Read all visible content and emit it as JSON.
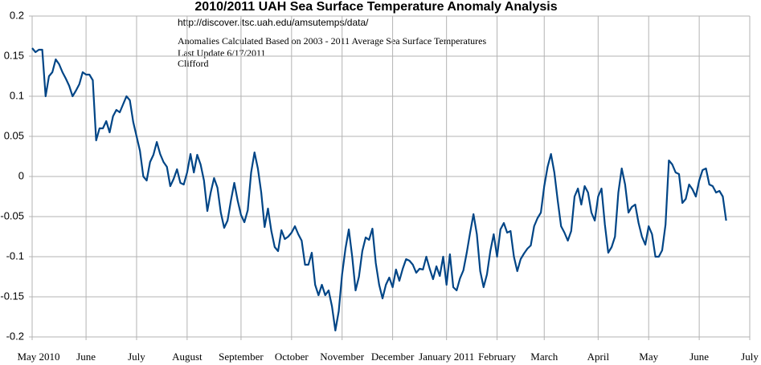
{
  "chart_data": {
    "type": "line",
    "title": "2010/2011 UAH Sea Surface Temperature Anomaly Analysis",
    "annotations": [
      "http://discover.itsc.uah.edu/amsutemps/data/",
      "Anomalies Calculated Based on 2003 - 2011 Average Sea Surface Temperatures",
      "Last Update 6/17/2011",
      "Clifford"
    ],
    "color": "#004586",
    "ylim": [
      -0.2,
      0.2
    ],
    "yticks": [
      0.2,
      0.15,
      0.1,
      0.05,
      0,
      -0.05,
      -0.1,
      -0.15,
      -0.2
    ],
    "grid": true,
    "categories": [
      "May 2010",
      null,
      null,
      null,
      null,
      null,
      null,
      null,
      null,
      null,
      null,
      null,
      null,
      null,
      null,
      null,
      "June",
      null,
      null,
      null,
      null,
      null,
      null,
      null,
      null,
      null,
      null,
      null,
      null,
      null,
      null,
      "July",
      null,
      null,
      null,
      null,
      null,
      null,
      null,
      null,
      null,
      null,
      null,
      null,
      null,
      null,
      "August",
      null,
      null,
      null,
      null,
      null,
      null,
      null,
      null,
      null,
      null,
      null,
      null,
      null,
      null,
      null,
      "September",
      null,
      null,
      null,
      null,
      null,
      null,
      null,
      null,
      null,
      null,
      null,
      null,
      null,
      null,
      "October",
      null,
      null,
      null,
      null,
      null,
      null,
      null,
      null,
      null,
      null,
      null,
      null,
      null,
      null,
      "November",
      null,
      null,
      null,
      null,
      null,
      null,
      null,
      null,
      null,
      null,
      null,
      null,
      null,
      null,
      "December",
      null,
      null,
      null,
      null,
      null,
      null,
      null,
      null,
      null,
      null,
      null,
      null,
      null,
      null,
      null,
      "January 2011",
      null,
      null,
      null,
      null,
      null,
      null,
      null,
      null,
      null,
      null,
      null,
      null,
      null,
      null,
      "February",
      null,
      null,
      null,
      null,
      null,
      null,
      null,
      null,
      null,
      null,
      null,
      null,
      null,
      "March",
      null,
      null,
      null,
      null,
      null,
      null,
      null,
      null,
      null,
      null,
      null,
      null,
      null,
      null,
      null,
      "April",
      null,
      null,
      null,
      null,
      null,
      null,
      null,
      null,
      null,
      null,
      null,
      null,
      null,
      null,
      "May",
      null,
      null,
      null,
      null,
      null,
      null,
      null,
      null,
      null,
      null,
      null,
      null,
      null,
      null,
      "June",
      null,
      null,
      null,
      null,
      null,
      null,
      null,
      null,
      null,
      null,
      null,
      null,
      null,
      null,
      "July"
    ],
    "values": [
      0.16,
      0.155,
      0.158,
      0.158,
      0.1,
      0.125,
      0.13,
      0.146,
      0.14,
      0.13,
      0.122,
      0.113,
      0.1,
      0.107,
      0.115,
      0.13,
      0.127,
      0.127,
      0.12,
      0.045,
      0.06,
      0.06,
      0.069,
      0.055,
      0.075,
      0.083,
      0.08,
      0.09,
      0.1,
      0.095,
      0.068,
      0.05,
      0.032,
      0.0,
      -0.005,
      0.018,
      0.027,
      0.043,
      0.028,
      0.018,
      0.012,
      -0.012,
      -0.003,
      0.009,
      -0.008,
      -0.01,
      0.005,
      0.028,
      0.005,
      0.027,
      0.015,
      -0.005,
      -0.043,
      -0.02,
      -0.002,
      -0.014,
      -0.045,
      -0.064,
      -0.055,
      -0.03,
      -0.008,
      -0.03,
      -0.048,
      -0.057,
      -0.042,
      0.005,
      0.03,
      0.01,
      -0.02,
      -0.063,
      -0.04,
      -0.068,
      -0.088,
      -0.093,
      -0.067,
      -0.078,
      -0.075,
      -0.07,
      -0.062,
      -0.072,
      -0.08,
      -0.11,
      -0.11,
      -0.095,
      -0.135,
      -0.148,
      -0.135,
      -0.148,
      -0.142,
      -0.162,
      -0.192,
      -0.168,
      -0.122,
      -0.09,
      -0.066,
      -0.1,
      -0.142,
      -0.125,
      -0.093,
      -0.076,
      -0.079,
      -0.065,
      -0.108,
      -0.135,
      -0.152,
      -0.135,
      -0.126,
      -0.138,
      -0.116,
      -0.13,
      -0.115,
      -0.103,
      -0.105,
      -0.11,
      -0.12,
      -0.115,
      -0.116,
      -0.1,
      -0.115,
      -0.128,
      -0.112,
      -0.124,
      -0.1,
      -0.135,
      -0.097,
      -0.138,
      -0.142,
      -0.127,
      -0.117,
      -0.095,
      -0.07,
      -0.047,
      -0.072,
      -0.118,
      -0.138,
      -0.122,
      -0.093,
      -0.072,
      -0.1,
      -0.066,
      -0.058,
      -0.07,
      -0.068,
      -0.1,
      -0.118,
      -0.103,
      -0.096,
      -0.09,
      -0.086,
      -0.062,
      -0.052,
      -0.045,
      -0.012,
      0.012,
      0.028,
      0.005,
      -0.03,
      -0.062,
      -0.07,
      -0.08,
      -0.068,
      -0.025,
      -0.015,
      -0.035,
      -0.012,
      -0.02,
      -0.045,
      -0.055,
      -0.025,
      -0.015,
      -0.06,
      -0.095,
      -0.088,
      -0.075,
      -0.02,
      0.01,
      -0.01,
      -0.045,
      -0.038,
      -0.035,
      -0.058,
      -0.075,
      -0.085,
      -0.062,
      -0.072,
      -0.1,
      -0.1,
      -0.092,
      -0.06,
      0.02,
      0.015,
      0.005,
      0.003,
      -0.033,
      -0.028,
      -0.01,
      -0.016,
      -0.025,
      -0.005,
      0.008,
      0.01,
      -0.01,
      -0.012,
      -0.02,
      -0.018,
      -0.025,
      -0.055,
      null,
      null,
      null,
      null,
      null,
      null,
      null
    ]
  }
}
